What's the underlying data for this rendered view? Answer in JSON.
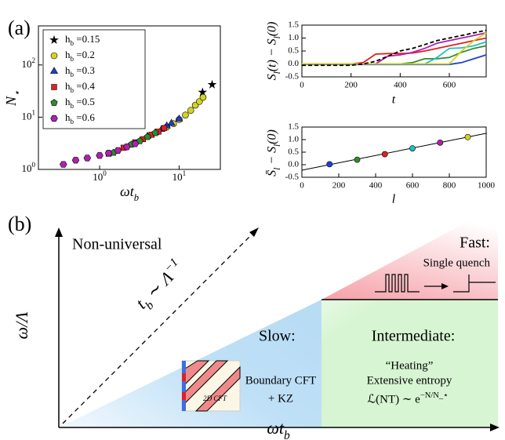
{
  "chart_data": [
    {
      "type": "scatter",
      "panel": "(a)",
      "x_label": "ωt_b",
      "y_label": "N_⋆",
      "xscale": "log",
      "yscale": "log",
      "xlim": [
        0.17,
        33
      ],
      "ylim": [
        1,
        560
      ],
      "xticks": [
        {
          "value": 1,
          "label": "10^0"
        },
        {
          "value": 10,
          "label": "10^1"
        }
      ],
      "yticks": [
        {
          "value": 1,
          "label": "10^0"
        },
        {
          "value": 10,
          "label": "10^1"
        },
        {
          "value": 100,
          "label": "10^2"
        }
      ],
      "legend": "upper left",
      "series": [
        {
          "name": "h_b =0.15",
          "color": "#000000",
          "marker": "star",
          "x": [
            19.7,
            26
          ],
          "values": [
            30,
            42
          ]
        },
        {
          "name": "h_b =0.2",
          "color": "#d4d420",
          "marker": "circle",
          "x": [
            7,
            8.5,
            10,
            12,
            14,
            16,
            18,
            20
          ],
          "values": [
            6.5,
            7.5,
            9,
            11,
            13.5,
            17,
            20,
            24
          ]
        },
        {
          "name": "h_b =0.3",
          "color": "#1f3fd8",
          "marker": "triangle",
          "x": [
            4,
            5,
            6,
            7,
            8,
            10
          ],
          "values": [
            4.3,
            5,
            5.8,
            6.8,
            7.6,
            9.2
          ]
        },
        {
          "name": "h_b =0.4",
          "color": "#e02020",
          "marker": "square",
          "x": [
            1.3,
            2,
            2.8,
            3.5,
            4.5,
            5.5,
            6.5
          ],
          "values": [
            2,
            2.6,
            3.3,
            3.8,
            4.6,
            5.3,
            6.2
          ]
        },
        {
          "name": "h_b =0.5",
          "color": "#2e8b2e",
          "marker": "pentagon",
          "x": [
            1.5,
            2.5,
            3.2,
            4,
            5
          ],
          "values": [
            2.1,
            3,
            3.5,
            4.2,
            5
          ]
        },
        {
          "name": "h_b =0.6",
          "color": "#b020b0",
          "marker": "hexagon",
          "x": [
            0.35,
            0.5,
            0.7,
            1,
            1.3,
            1.7,
            2.2,
            2.8
          ],
          "values": [
            1.25,
            1.5,
            1.65,
            1.85,
            2.05,
            2.3,
            2.7,
            3.1
          ]
        }
      ]
    },
    {
      "type": "line",
      "x_label": "t",
      "y_label": "S_l(t) − S_l(0)",
      "xlim": [
        0,
        750
      ],
      "ylim": [
        -0.5,
        1.5
      ],
      "xticks": [
        0,
        200,
        400,
        600
      ],
      "yticks": [
        -0.5,
        {
          "value": 0,
          "label": "0.0"
        },
        0.5,
        {
          "value": 1,
          "label": "1.0"
        },
        1.5
      ],
      "x": [
        0,
        50,
        100,
        150,
        200,
        250,
        300,
        350,
        400,
        450,
        500,
        550,
        600,
        650,
        700,
        750
      ],
      "series": [
        {
          "color": "#1f3fd8",
          "values": [
            -0.02,
            -0.02,
            -0.02,
            -0.02,
            -0.02,
            -0.02,
            -0.02,
            -0.02,
            -0.02,
            -0.02,
            -0.02,
            -0.02,
            -0.02,
            0.05,
            0.2,
            0.35
          ]
        },
        {
          "color": "#2e8b2e",
          "values": [
            0,
            0,
            0,
            0,
            0,
            0,
            0,
            0,
            0,
            0.05,
            0.2,
            0.2,
            0.25,
            0.45,
            0.6,
            0.7
          ]
        },
        {
          "color": "#e02020",
          "values": [
            0,
            0,
            0,
            0,
            0,
            0.05,
            0.38,
            0.4,
            0.4,
            0.42,
            0.5,
            0.6,
            0.7,
            0.8,
            0.9,
            1.0
          ]
        },
        {
          "color": "#20c0c0",
          "values": [
            0,
            0,
            0,
            0,
            0,
            0,
            0,
            0,
            0,
            0,
            0,
            0.25,
            0.6,
            0.62,
            0.7,
            0.85
          ]
        },
        {
          "color": "#b020b0",
          "values": [
            0,
            0,
            0,
            0,
            0,
            0,
            0,
            0.3,
            0.35,
            0.45,
            0.6,
            0.8,
            0.9,
            1.0,
            1.1,
            1.2
          ]
        },
        {
          "color": "#d4d420",
          "values": [
            0,
            0,
            0,
            0,
            0,
            0,
            0,
            0,
            0,
            0,
            0,
            0,
            0,
            0.5,
            0.9,
            1.2
          ]
        },
        {
          "color": "#000000",
          "values": [
            -0.05,
            -0.05,
            -0.05,
            -0.05,
            -0.05,
            0.0,
            0.1,
            0.3,
            0.5,
            0.6,
            0.75,
            0.9,
            1.0,
            1.1,
            1.2,
            1.3
          ]
        }
      ]
    },
    {
      "type": "scatter",
      "x_label": "l",
      "y_label": "S̄_l − S_l(0)",
      "xlim": [
        0,
        1000
      ],
      "ylim": [
        -0.5,
        1.5
      ],
      "xticks": [
        0,
        200,
        400,
        600,
        800,
        1000
      ],
      "yticks": [
        -0.5,
        {
          "value": 0,
          "label": "0.0"
        },
        0.5,
        {
          "value": 1,
          "label": "1.0"
        },
        1.5
      ],
      "series": [
        {
          "marker": "circle",
          "x": [
            150,
            300,
            450,
            600,
            750,
            900
          ],
          "values": [
            0.02,
            0.2,
            0.42,
            0.65,
            0.88,
            1.1
          ],
          "colors": [
            "#1f3fd8",
            "#2e8b2e",
            "#e02020",
            "#20c0c0",
            "#b020b0",
            "#d4d420"
          ]
        }
      ],
      "fit": {
        "color": "#000000",
        "x": [
          0,
          1000
        ],
        "values": [
          -0.22,
          1.25
        ]
      }
    }
  ],
  "diagram": {
    "panel": "(b)",
    "x_label": "ωt_b",
    "y_label": "ω/Λ",
    "regions": [
      {
        "label": "Non-universal"
      },
      {
        "label": "Fast:",
        "note": "Single quench"
      },
      {
        "label": "Slow:",
        "lines": [
          "Boundary CFT",
          "+ KZ"
        ],
        "inset": "2D CFT"
      },
      {
        "label": "Intermediate:",
        "lines": [
          "“Heating”",
          "Extensive entropy",
          "ℒ(NT) ∼ e^−N/N_⋆"
        ]
      }
    ],
    "diagonal": "t_b ∼ Λ^−1"
  }
}
